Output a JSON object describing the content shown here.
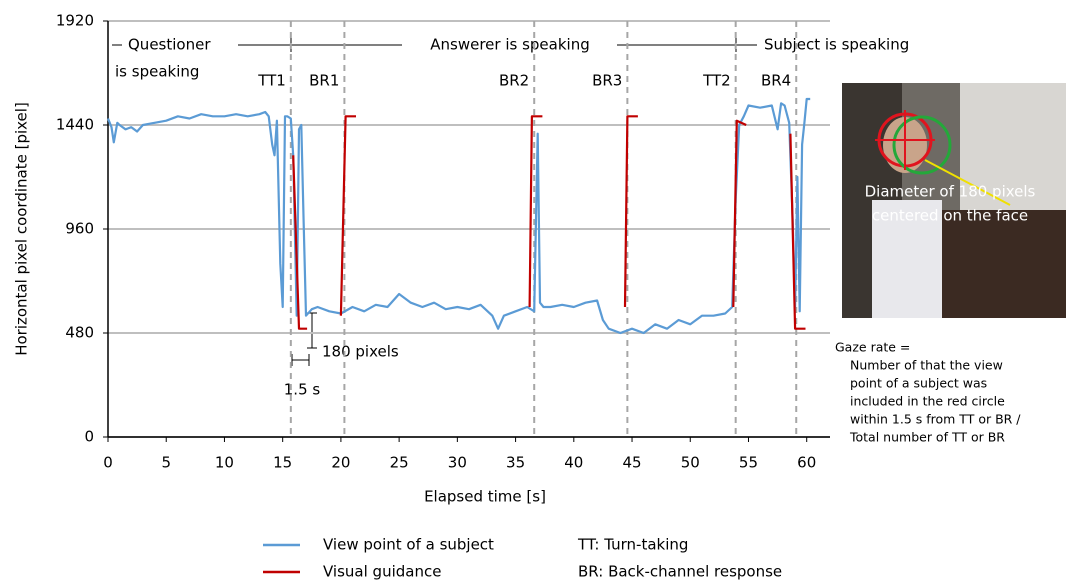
{
  "chart_data": {
    "type": "line",
    "xlabel": "Elapsed time [s]",
    "ylabel": "Horizontal pixel coordinate [pixel]",
    "xlim": [
      0,
      62
    ],
    "ylim": [
      0,
      1920
    ],
    "xticks": [
      0,
      5,
      10,
      15,
      20,
      25,
      30,
      35,
      40,
      45,
      50,
      55,
      60
    ],
    "yticks": [
      0,
      480,
      960,
      1440,
      1920
    ],
    "grid": true,
    "series": [
      {
        "name": "View point of a subject",
        "color": "#5b9bd5",
        "x": [
          0,
          0.3,
          0.5,
          0.8,
          1,
          1.5,
          2,
          2.5,
          3,
          4,
          5,
          6,
          7,
          8,
          9,
          10,
          11,
          12,
          13,
          13.5,
          13.8,
          14.1,
          14.3,
          14.5,
          14.8,
          15,
          15.2,
          15.4,
          15.7,
          15.9,
          16.2,
          16.4,
          16.6,
          16.8,
          17,
          17.5,
          18,
          19,
          20,
          21,
          22,
          23,
          24,
          25,
          26,
          27,
          28,
          29,
          30,
          31,
          32,
          33,
          33.5,
          34,
          35,
          36,
          36.6,
          36.9,
          37.1,
          37.4,
          38,
          39,
          40,
          41,
          42,
          42.5,
          43,
          44,
          45,
          46,
          47,
          48,
          49,
          50,
          51,
          52,
          53,
          53.6,
          53.9,
          54.2,
          54.6,
          55,
          56,
          57,
          57.5,
          57.8,
          58.1,
          58.5,
          58.8,
          59,
          59.2,
          59.4,
          59.6,
          59.8,
          60,
          60.3
        ],
        "values": [
          1470,
          1430,
          1360,
          1450,
          1440,
          1420,
          1430,
          1410,
          1440,
          1450,
          1460,
          1480,
          1470,
          1490,
          1480,
          1480,
          1490,
          1480,
          1490,
          1500,
          1480,
          1350,
          1300,
          1460,
          800,
          600,
          1480,
          1480,
          1470,
          1300,
          560,
          1420,
          1440,
          1000,
          560,
          590,
          600,
          580,
          570,
          600,
          580,
          610,
          600,
          660,
          620,
          600,
          620,
          590,
          600,
          590,
          610,
          560,
          500,
          560,
          580,
          600,
          580,
          1400,
          620,
          600,
          600,
          610,
          600,
          620,
          630,
          540,
          500,
          480,
          500,
          480,
          520,
          500,
          540,
          520,
          560,
          560,
          570,
          600,
          1100,
          1440,
          1480,
          1530,
          1520,
          1530,
          1420,
          1540,
          1530,
          1450,
          1000,
          600,
          1200,
          580,
          1350,
          1450,
          1560,
          1560
        ]
      },
      {
        "name": "Visual guidance",
        "color": "#c00000",
        "x": [
          15.9,
          16.4,
          17.1,
          null,
          20.0,
          20.4,
          21.3,
          null,
          36.2,
          36.4,
          37.3,
          null,
          44.4,
          44.6,
          45.5,
          null,
          53.7,
          54.0,
          54.8,
          null,
          58.6,
          59.0,
          59.9
        ],
        "values": [
          1300,
          500,
          500,
          null,
          560,
          1480,
          1480,
          null,
          600,
          1480,
          1480,
          null,
          600,
          1480,
          1480,
          null,
          600,
          1460,
          1440,
          null,
          1400,
          500,
          500
        ]
      }
    ],
    "events": [
      {
        "label": "TT1",
        "time": 15.7
      },
      {
        "label": "BR1",
        "time": 20.3
      },
      {
        "label": "BR2",
        "time": 36.6
      },
      {
        "label": "BR3",
        "time": 44.6
      },
      {
        "label": "TT2",
        "time": 53.9
      },
      {
        "label": "BR4",
        "time": 59.1
      }
    ],
    "speakers": [
      "Questioner",
      "is speaking",
      "Answerer is speaking",
      "Subject is speaking"
    ],
    "annotations": {
      "pixels": "180 pixels",
      "seconds": "1.5 s"
    },
    "photo_caption": [
      "Diameter of 180 pixels",
      "centered on the face"
    ],
    "gaze_rate": [
      "Gaze rate =",
      "Number of that the view",
      "point of a subject was",
      "included in the red circle",
      "within 1.5 s from TT or BR /",
      "Total number of TT or BR"
    ],
    "abbreviations": [
      "TT: Turn-taking",
      "BR: Back-channel response"
    ]
  }
}
